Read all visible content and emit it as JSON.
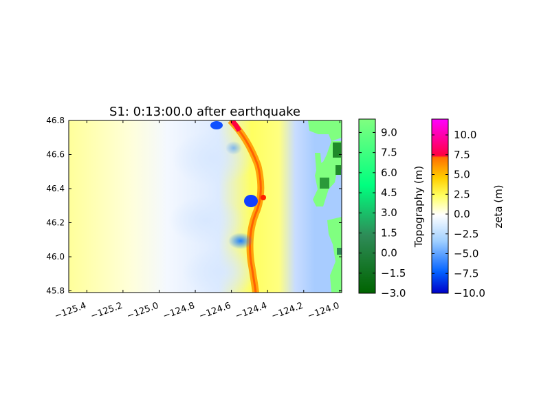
{
  "chart_data": {
    "type": "heatmap",
    "title": "S1: 0:13:00.0 after earthquake",
    "x_ticks": [
      "−125.4",
      "−125.2",
      "−125.0",
      "−124.8",
      "−124.6",
      "−124.4",
      "−124.2",
      "−124.0"
    ],
    "x_tick_values": [
      -125.4,
      -125.2,
      -125.0,
      -124.8,
      -124.6,
      -124.4,
      -124.2,
      -124.0
    ],
    "xlim": [
      -125.5,
      -123.99
    ],
    "y_ticks": [
      "46.8",
      "46.6",
      "46.4",
      "46.2",
      "46.0",
      "45.8"
    ],
    "y_tick_values": [
      46.8,
      46.6,
      46.4,
      46.2,
      46.0,
      45.8
    ],
    "ylim": [
      45.79,
      46.8
    ],
    "colorbars": [
      {
        "label": "Topography (m)",
        "ticks": [
          "9.0",
          "7.5",
          "6.0",
          "4.5",
          "3.0",
          "1.5",
          "0.0",
          "−1.5",
          "−3.0"
        ],
        "tick_values": [
          9.0,
          7.5,
          6.0,
          4.5,
          3.0,
          1.5,
          0.0,
          -1.5,
          -3.0
        ],
        "range": [
          -3.0,
          10.0
        ],
        "colors": [
          "#006400",
          "#2e8b57",
          "#00ff7f",
          "#80ff80"
        ]
      },
      {
        "label": "zeta (m)",
        "ticks": [
          "10.0",
          "7.5",
          "5.0",
          "2.5",
          "0.0",
          "−2.5",
          "−5.0",
          "−7.5",
          "−10.0"
        ],
        "tick_values": [
          10.0,
          7.5,
          5.0,
          2.5,
          0.0,
          -2.5,
          -5.0,
          -7.5,
          -10.0
        ],
        "range": [
          -10.0,
          12.0
        ],
        "colors": [
          "#0000c8",
          "#0060ff",
          "#a0d0ff",
          "#ffffff",
          "#ffff60",
          "#ffd000",
          "#ff7000",
          "#ff0040",
          "#ff00ff"
        ]
      }
    ]
  }
}
